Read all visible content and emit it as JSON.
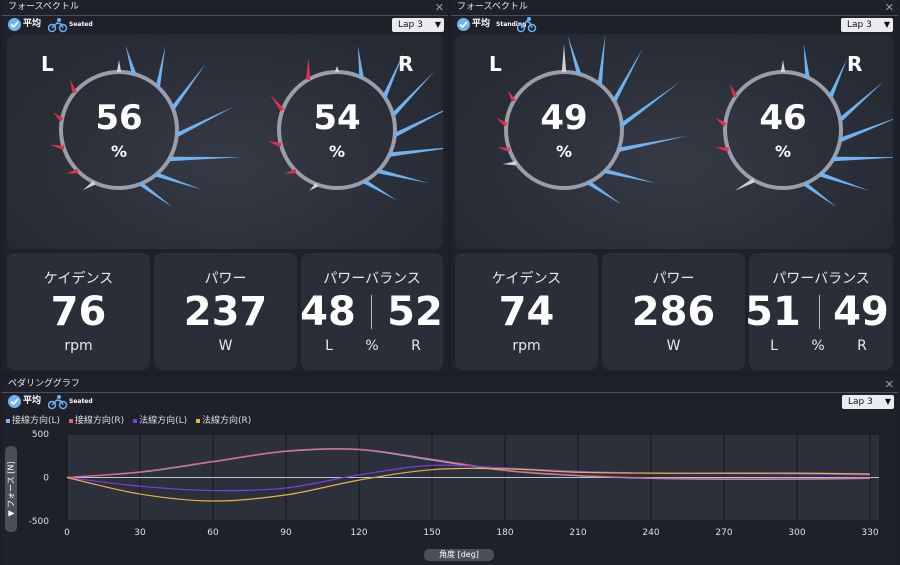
{
  "force_panels": [
    {
      "title": "フォースベクトル",
      "avg_label": "平均",
      "posture": "Seated",
      "lap": "Lap 3",
      "gauges": [
        {
          "side": "L",
          "value": "56",
          "unit": "%"
        },
        {
          "side": "R",
          "value": "54",
          "unit": "%"
        }
      ],
      "metrics": {
        "cadence": {
          "label": "ケイデンス",
          "value": "76",
          "unit": "rpm"
        },
        "power": {
          "label": "パワー",
          "value": "237",
          "unit": "W"
        },
        "balance": {
          "label": "パワーバランス",
          "left": "48",
          "right": "52",
          "left_label": "L",
          "unit": "%",
          "right_label": "R"
        }
      }
    },
    {
      "title": "フォースベクトル",
      "avg_label": "平均",
      "posture": "Standing",
      "lap": "Lap 3",
      "gauges": [
        {
          "side": "L",
          "value": "49",
          "unit": "%"
        },
        {
          "side": "R",
          "value": "46",
          "unit": "%"
        }
      ],
      "metrics": {
        "cadence": {
          "label": "ケイデンス",
          "value": "74",
          "unit": "rpm"
        },
        "power": {
          "label": "パワー",
          "value": "286",
          "unit": "W"
        },
        "balance": {
          "label": "パワーバランス",
          "left": "51",
          "right": "49",
          "left_label": "L",
          "unit": "%",
          "right_label": "R"
        }
      }
    }
  ],
  "pedal_panel": {
    "title": "ペダリンググラフ",
    "avg_label": "平均",
    "posture": "Seated",
    "lap": "Lap 3",
    "y_axis_label": "▼ フォース [N]",
    "x_axis_label": "角度 [deg]"
  },
  "chart_data": {
    "type": "line",
    "x": [
      0,
      30,
      60,
      90,
      120,
      150,
      180,
      210,
      240,
      270,
      300,
      330
    ],
    "xlabel": "角度 [deg]",
    "ylabel": "フォース [N]",
    "ylim": [
      -500,
      500
    ],
    "xlim": [
      0,
      330
    ],
    "x_ticks": [
      "0",
      "30",
      "60",
      "90",
      "120",
      "150",
      "180",
      "210",
      "240",
      "270",
      "300",
      "330"
    ],
    "y_ticks": [
      "500",
      "0",
      "-500"
    ],
    "grid": true,
    "legend_position": "top-left",
    "series": [
      {
        "name": "接線方向(L)",
        "color": "#7fb7f2",
        "values": [
          0,
          60,
          180,
          300,
          320,
          200,
          80,
          20,
          -10,
          -20,
          -20,
          -10
        ]
      },
      {
        "name": "接線方向(R)",
        "color": "#e8607a",
        "values": [
          0,
          65,
          185,
          305,
          325,
          210,
          85,
          25,
          -5,
          -15,
          -15,
          -5
        ]
      },
      {
        "name": "法線方向(L)",
        "color": "#7a3fe0",
        "values": [
          0,
          -100,
          -150,
          -120,
          30,
          140,
          110,
          70,
          50,
          45,
          40,
          30
        ]
      },
      {
        "name": "法線方向(R)",
        "color": "#e8b04a",
        "values": [
          0,
          -190,
          -270,
          -200,
          -30,
          90,
          100,
          60,
          50,
          50,
          50,
          40
        ]
      }
    ]
  },
  "colors": {
    "accent": "#6fb2f0",
    "left_vector": "#e0304a",
    "right_vector": "#6fb2f0",
    "neutral_vector": "#d0d0d0"
  }
}
